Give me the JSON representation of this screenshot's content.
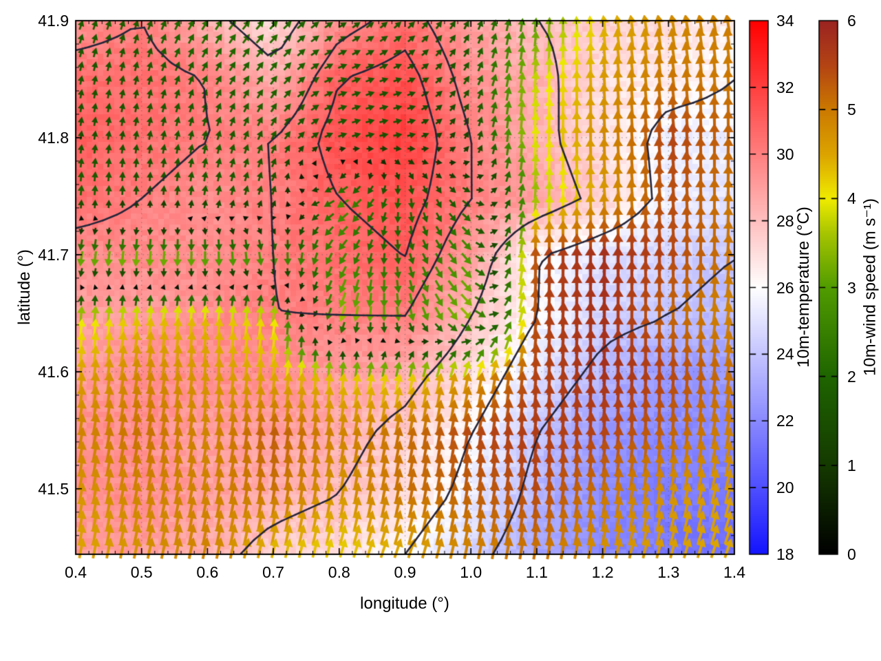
{
  "figure": {
    "background": "#ffffff",
    "frame_color": "#000000",
    "grid_dot_color": "rgba(90,90,90,0.55)"
  },
  "axes": {
    "xlabel": "longitude (°)",
    "ylabel": "latitude (°)",
    "x_range": [
      0.4,
      1.4
    ],
    "y_range": [
      41.444,
      41.9
    ],
    "xticks": [
      "0.4",
      "0.5",
      "0.6",
      "0.7",
      "0.8",
      "0.9",
      "1.0",
      "1.1",
      "1.2",
      "1.3",
      "1.4"
    ],
    "yticks": [
      "41.5",
      "41.6",
      "41.7",
      "41.8",
      "41.9"
    ],
    "minor_tick_step": 0.02
  },
  "colorbars": [
    {
      "id": "temperature",
      "title": "10m-temperature (°C)",
      "min": 18,
      "max": 34,
      "tick_labels": [
        "18",
        "20",
        "22",
        "24",
        "26",
        "28",
        "30",
        "32",
        "34"
      ],
      "dash_ticks": [
        20,
        22,
        24,
        26,
        28,
        30,
        32
      ],
      "stops": [
        [
          18,
          "#1414ff"
        ],
        [
          26,
          "#ffffff"
        ],
        [
          34,
          "#ff0000"
        ]
      ]
    },
    {
      "id": "wind_speed",
      "title": "10m-wind speed (m s⁻¹)",
      "min": 0,
      "max": 6,
      "tick_labels": [
        "0",
        "1",
        "2",
        "3",
        "4",
        "5",
        "6"
      ],
      "dash_ticks": [
        1,
        2,
        3,
        4,
        5
      ],
      "stops": [
        [
          0,
          "#000000"
        ],
        [
          1,
          "#153a00"
        ],
        [
          2,
          "#1f6500"
        ],
        [
          3,
          "#519c00"
        ],
        [
          3.6,
          "#a6c400"
        ],
        [
          4,
          "#f0ec00"
        ],
        [
          4.5,
          "#dca400"
        ],
        [
          5,
          "#cc7a00"
        ],
        [
          5.5,
          "#b44414"
        ],
        [
          6,
          "#9b2422"
        ]
      ]
    }
  ],
  "chart_data": {
    "type": "heatmap",
    "subtype": "vector-field-map",
    "title": "",
    "xlabel": "longitude (°)",
    "ylabel": "latitude (°)",
    "grid": true,
    "lon": [
      0.4,
      0.5,
      0.6,
      0.7,
      0.8,
      0.9,
      1.0,
      1.1,
      1.2,
      1.3,
      1.4
    ],
    "lat": [
      41.9,
      41.85,
      41.8,
      41.75,
      41.7,
      41.65,
      41.6,
      41.55,
      41.5,
      41.45
    ],
    "temperature_c": [
      [
        29.5,
        30.0,
        28.5,
        27.0,
        29.5,
        30.5,
        29.0,
        28.0,
        27.5,
        27.0,
        26.5
      ],
      [
        30.5,
        30.5,
        30.0,
        28.5,
        31.0,
        31.5,
        29.5,
        28.5,
        27.0,
        26.5,
        26.0
      ],
      [
        31.0,
        30.5,
        30.0,
        30.0,
        31.5,
        32.0,
        30.0,
        28.5,
        27.0,
        25.5,
        25.5
      ],
      [
        30.5,
        30.0,
        29.5,
        30.0,
        31.0,
        31.5,
        30.0,
        29.0,
        27.5,
        25.5,
        25.0
      ],
      [
        29.5,
        29.5,
        29.5,
        30.0,
        30.5,
        31.0,
        29.0,
        26.0,
        25.0,
        24.5,
        24.0
      ],
      [
        29.0,
        29.0,
        29.5,
        30.0,
        30.0,
        30.0,
        28.0,
        26.0,
        24.5,
        24.0,
        23.5
      ],
      [
        29.0,
        29.5,
        29.5,
        29.5,
        29.0,
        28.5,
        27.0,
        25.0,
        23.5,
        22.5,
        22.5
      ],
      [
        29.5,
        29.5,
        29.0,
        29.0,
        28.5,
        27.5,
        26.0,
        24.0,
        22.5,
        22.0,
        22.0
      ],
      [
        29.5,
        29.5,
        29.0,
        28.5,
        28.0,
        27.0,
        25.5,
        23.5,
        22.0,
        21.5,
        21.5
      ],
      [
        29.0,
        29.0,
        28.5,
        27.5,
        27.0,
        26.0,
        24.5,
        23.0,
        22.0,
        21.5,
        21.0
      ]
    ],
    "wind_u_ms": [
      [
        0.6,
        0.6,
        1.2,
        1.5,
        1.4,
        1.2,
        0.8,
        0.3,
        -0.5,
        -0.8,
        -0.8
      ],
      [
        0.3,
        0.4,
        0.8,
        1.2,
        1.6,
        1.4,
        0.9,
        0.3,
        -0.3,
        -0.6,
        -0.3
      ],
      [
        0.2,
        0.3,
        0.4,
        0.8,
        1.5,
        1.5,
        0.5,
        0.2,
        -0.2,
        -0.5,
        0.2
      ],
      [
        0.2,
        0.0,
        0.3,
        0.5,
        -2.5,
        0.0,
        1.5,
        0.3,
        -0.4,
        -0.5,
        0.2
      ],
      [
        -0.5,
        -0.3,
        0.0,
        0.5,
        -1.5,
        0.5,
        2.0,
        0.0,
        0.0,
        -0.3,
        0.5
      ],
      [
        0.3,
        0.5,
        0.3,
        0.5,
        -1.0,
        0.5,
        2.5,
        0.5,
        0.0,
        0.0,
        0.8
      ],
      [
        0.5,
        0.8,
        0.5,
        0.5,
        0.5,
        0.8,
        1.0,
        0.5,
        0.3,
        0.3,
        0.8
      ],
      [
        0.8,
        1.0,
        0.8,
        0.8,
        0.8,
        1.0,
        0.8,
        0.5,
        0.5,
        0.5,
        1.0
      ],
      [
        0.8,
        1.0,
        1.0,
        0.8,
        0.8,
        1.0,
        0.8,
        0.8,
        0.8,
        1.0,
        1.2
      ],
      [
        0.8,
        1.0,
        1.0,
        1.0,
        1.2,
        1.5,
        1.0,
        0.8,
        1.0,
        1.2,
        1.5
      ]
    ],
    "wind_v_ms": [
      [
        1.7,
        1.7,
        1.9,
        1.6,
        0.9,
        1.2,
        1.5,
        3.0,
        4.3,
        4.7,
        4.9
      ],
      [
        1.6,
        1.6,
        1.6,
        1.6,
        0.6,
        0.5,
        1.5,
        3.8,
        4.6,
        5.0,
        5.0
      ],
      [
        1.5,
        1.6,
        1.7,
        1.6,
        0.5,
        0.2,
        1.2,
        4.0,
        4.8,
        5.5,
        5.2
      ],
      [
        2.0,
        1.5,
        1.8,
        1.5,
        -1.5,
        -2.0,
        -1.0,
        3.5,
        4.6,
        5.4,
        5.0
      ],
      [
        -3.2,
        -3.4,
        -3.2,
        -2.8,
        -2.2,
        -2.0,
        -2.2,
        5.5,
        5.8,
        5.5,
        5.0
      ],
      [
        3.8,
        4.2,
        4.3,
        4.0,
        -3.5,
        -3.0,
        -2.5,
        5.5,
        5.8,
        5.2,
        4.8
      ],
      [
        4.5,
        4.8,
        4.6,
        4.4,
        4.2,
        4.0,
        4.5,
        5.5,
        5.8,
        5.5,
        5.0
      ],
      [
        4.8,
        5.0,
        4.8,
        5.2,
        4.8,
        5.0,
        5.4,
        5.6,
        5.5,
        5.2,
        4.8
      ],
      [
        4.6,
        4.8,
        4.8,
        5.0,
        4.6,
        5.0,
        5.2,
        5.4,
        5.0,
        4.6,
        4.4
      ],
      [
        4.4,
        4.6,
        4.8,
        4.2,
        4.0,
        4.2,
        4.8,
        5.0,
        4.6,
        4.4,
        4.2
      ]
    ],
    "contour_levels_c": [
      24,
      26,
      28,
      30,
      31
    ],
    "contour_color": "#26263a"
  }
}
